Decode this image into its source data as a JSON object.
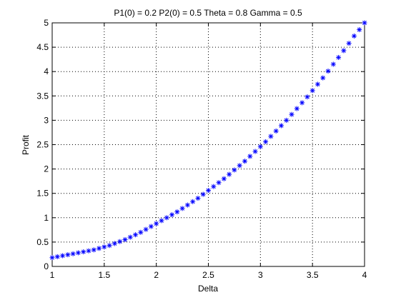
{
  "chart_data": {
    "type": "scatter",
    "title": "P1(0) = 0.2 P2(0) = 0.5 Theta = 0.8 Gamma = 0.5",
    "xlabel": "Delta",
    "ylabel": "Profit",
    "xlim": [
      1,
      4
    ],
    "ylim": [
      0,
      5
    ],
    "xticks": [
      1,
      1.5,
      2,
      2.5,
      3,
      3.5,
      4
    ],
    "yticks": [
      0,
      0.5,
      1,
      1.5,
      2,
      2.5,
      3,
      3.5,
      4,
      4.5,
      5
    ],
    "xtick_labels": [
      "1",
      "1.5",
      "2",
      "2.5",
      "3",
      "3.5",
      "4"
    ],
    "ytick_labels": [
      "0",
      "0.5",
      "1",
      "1.5",
      "2",
      "2.5",
      "3",
      "3.5",
      "4",
      "4.5",
      "5"
    ],
    "grid": true,
    "marker": "*",
    "series": [
      {
        "color": "#0000ff",
        "x": [
          1.0,
          1.05,
          1.1,
          1.15,
          1.2,
          1.25,
          1.3,
          1.35,
          1.4,
          1.45,
          1.5,
          1.55,
          1.6,
          1.65,
          1.7,
          1.75,
          1.8,
          1.85,
          1.9,
          1.95,
          2.0,
          2.05,
          2.1,
          2.15,
          2.2,
          2.25,
          2.3,
          2.35,
          2.4,
          2.45,
          2.5,
          2.55,
          2.6,
          2.65,
          2.7,
          2.75,
          2.8,
          2.85,
          2.9,
          2.95,
          3.0,
          3.05,
          3.1,
          3.15,
          3.2,
          3.25,
          3.3,
          3.35,
          3.4,
          3.45,
          3.5,
          3.55,
          3.6,
          3.65,
          3.7,
          3.75,
          3.8,
          3.85,
          3.9,
          3.95,
          4.0
        ],
        "y": [
          0.18,
          0.2,
          0.22,
          0.24,
          0.26,
          0.28,
          0.3,
          0.32,
          0.34,
          0.37,
          0.4,
          0.43,
          0.47,
          0.51,
          0.55,
          0.6,
          0.65,
          0.7,
          0.76,
          0.82,
          0.88,
          0.94,
          1.0,
          1.06,
          1.12,
          1.19,
          1.26,
          1.33,
          1.4,
          1.48,
          1.56,
          1.64,
          1.72,
          1.8,
          1.89,
          1.98,
          2.07,
          2.16,
          2.26,
          2.36,
          2.46,
          2.56,
          2.67,
          2.78,
          2.89,
          3.0,
          3.12,
          3.24,
          3.36,
          3.48,
          3.61,
          3.74,
          3.87,
          4.01,
          4.15,
          4.29,
          4.43,
          4.58,
          4.73,
          4.86,
          5.0
        ]
      }
    ]
  }
}
